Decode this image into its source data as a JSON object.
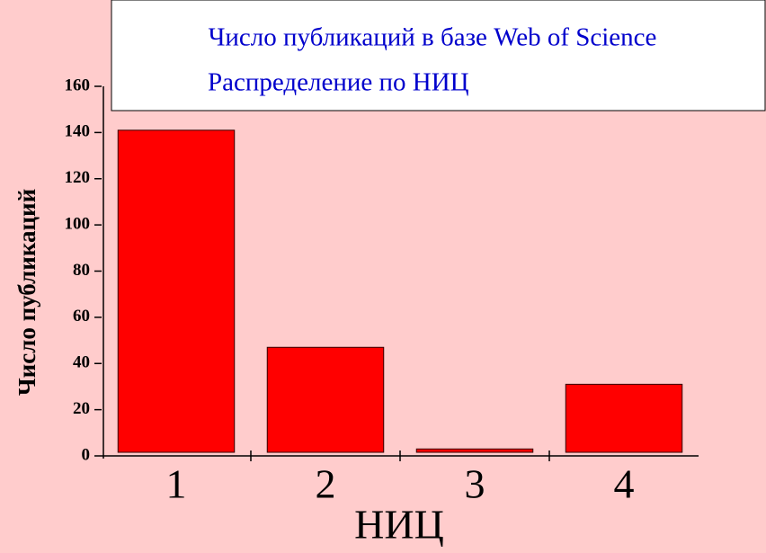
{
  "chart_data": {
    "type": "bar",
    "title": "Число публикаций в базе Web of Science",
    "subtitle": "Распределение по НИЦ",
    "x_label": "НИЦ",
    "y_label": "Число публикаций",
    "categories": [
      "1",
      "2",
      "3",
      "4"
    ],
    "values": [
      141,
      47,
      3,
      31
    ],
    "color": "#ff0000",
    "ylim": [
      0,
      160
    ],
    "yticks": [
      0,
      20,
      40,
      60,
      80,
      100,
      120,
      140,
      160
    ]
  }
}
